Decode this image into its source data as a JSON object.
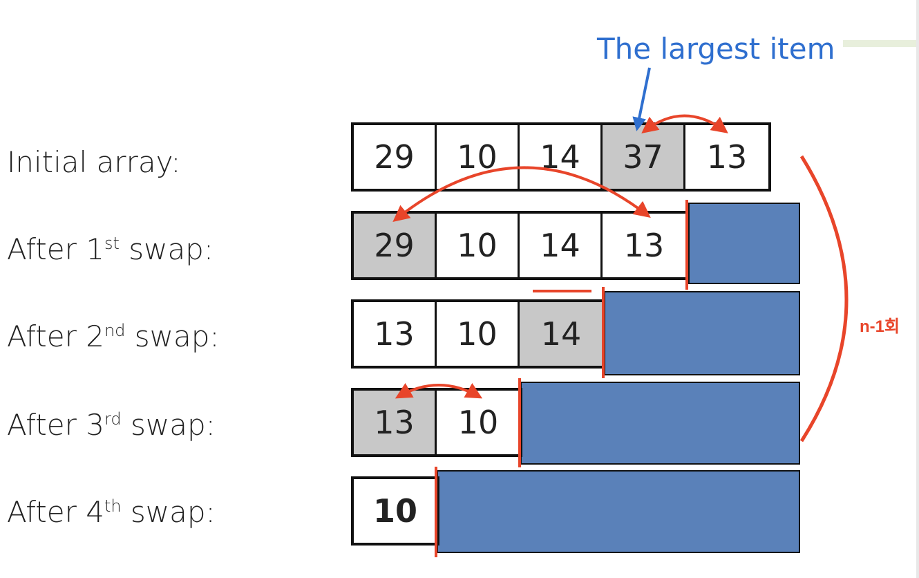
{
  "title": "The largest item",
  "note": "n-1회",
  "rows": [
    {
      "label_prefix": "Initial array:",
      "sup": "",
      "label_suffix": "",
      "cells": [
        "29",
        "10",
        "14",
        "37",
        "13"
      ]
    },
    {
      "label_prefix": "After 1",
      "sup": "st",
      "label_suffix": " swap:",
      "cells": [
        "29",
        "10",
        "14",
        "13"
      ]
    },
    {
      "label_prefix": "After 2",
      "sup": "nd",
      "label_suffix": " swap:",
      "cells": [
        "13",
        "10",
        "14"
      ]
    },
    {
      "label_prefix": "After 3",
      "sup": "rd",
      "label_suffix": " swap:",
      "cells": [
        "13",
        "10"
      ]
    },
    {
      "label_prefix": "After 4",
      "sup": "th",
      "label_suffix": " swap:",
      "cells": [
        "10"
      ]
    }
  ],
  "colors": {
    "arrow": "#e8452a",
    "title": "#2f6fcf",
    "sorted_region": "#5a81b9",
    "highlight_cell": "#c8c8c8"
  }
}
